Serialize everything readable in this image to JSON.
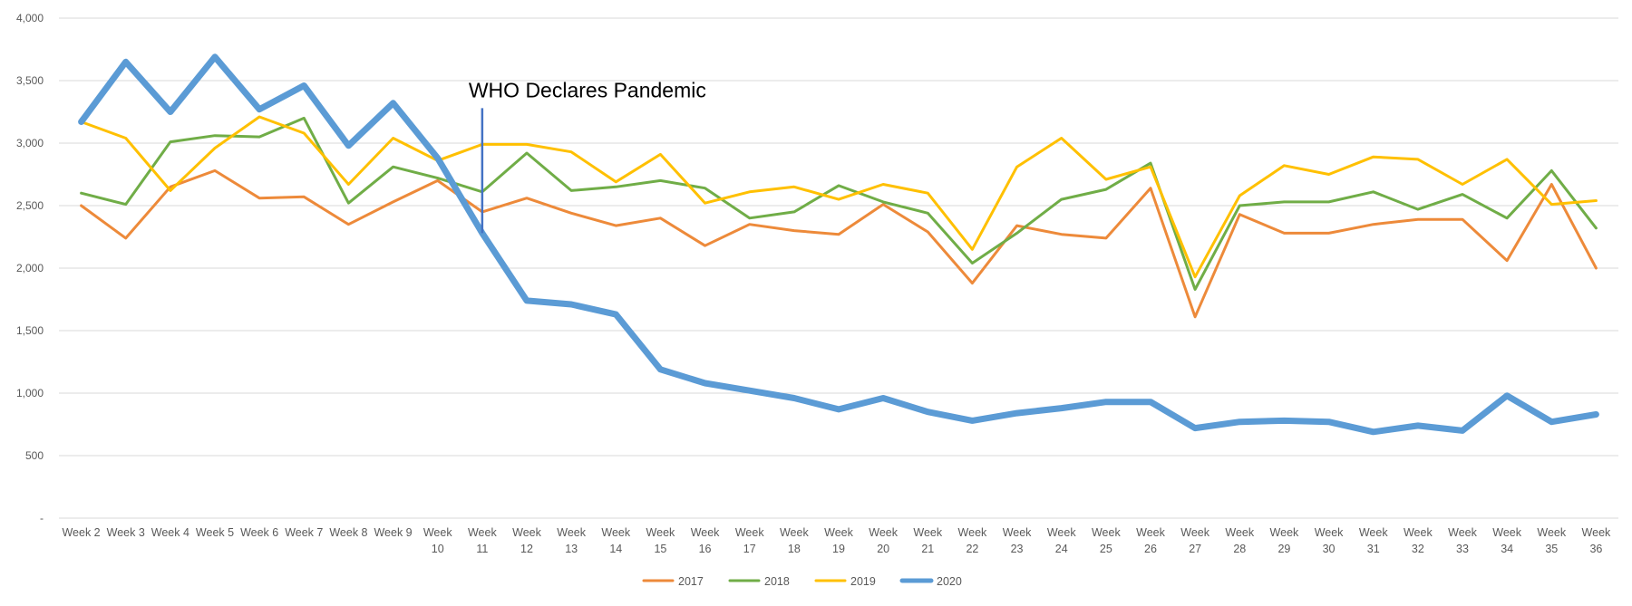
{
  "chart_data": {
    "type": "line",
    "title": "",
    "xlabel": "",
    "ylabel": "",
    "ylim": [
      0,
      4000
    ],
    "yticks": [
      {
        "value": 0,
        "label": "-"
      },
      {
        "value": 500,
        "label": "500"
      },
      {
        "value": 1000,
        "label": "1,000"
      },
      {
        "value": 1500,
        "label": "1,500"
      },
      {
        "value": 2000,
        "label": "2,000"
      },
      {
        "value": 2500,
        "label": "2,500"
      },
      {
        "value": 3000,
        "label": "3,000"
      },
      {
        "value": 3500,
        "label": "3,500"
      },
      {
        "value": 4000,
        "label": "4,000"
      }
    ],
    "grid": true,
    "legend_position": "bottom",
    "categories": [
      "Week 2",
      "Week 3",
      "Week 4",
      "Week 5",
      "Week 6",
      "Week 7",
      "Week 8",
      "Week 9",
      "Week 10",
      "Week 11",
      "Week 12",
      "Week 13",
      "Week 14",
      "Week 15",
      "Week 16",
      "Week 17",
      "Week 18",
      "Week 19",
      "Week 20",
      "Week 21",
      "Week 22",
      "Week 23",
      "Week 24",
      "Week 25",
      "Week 26",
      "Week 27",
      "Week 28",
      "Week 29",
      "Week 30",
      "Week 31",
      "Week 32",
      "Week 33",
      "Week 34",
      "Week 35",
      "Week 36"
    ],
    "series": [
      {
        "name": "2017",
        "color": "#ED8A3A",
        "emphasis": false,
        "values": [
          2500,
          2240,
          2650,
          2780,
          2560,
          2570,
          2350,
          2530,
          2700,
          2450,
          2560,
          2440,
          2340,
          2400,
          2180,
          2350,
          2300,
          2270,
          2510,
          2290,
          1880,
          2340,
          2270,
          2240,
          2640,
          1610,
          2430,
          2280,
          2280,
          2350,
          2390,
          2390,
          2060,
          2670,
          2000
        ]
      },
      {
        "name": "2018",
        "color": "#70AD47",
        "emphasis": false,
        "values": [
          2600,
          2510,
          3010,
          3060,
          3050,
          3200,
          2520,
          2810,
          2720,
          2610,
          2920,
          2620,
          2650,
          2700,
          2640,
          2400,
          2450,
          2660,
          2530,
          2440,
          2040,
          2280,
          2550,
          2630,
          2840,
          1830,
          2500,
          2530,
          2530,
          2610,
          2470,
          2590,
          2400,
          2780,
          2320
        ]
      },
      {
        "name": "2019",
        "color": "#FFC000",
        "emphasis": false,
        "values": [
          3170,
          3040,
          2620,
          2960,
          3210,
          3080,
          2670,
          3040,
          2860,
          2990,
          2990,
          2930,
          2690,
          2910,
          2520,
          2610,
          2650,
          2550,
          2670,
          2600,
          2150,
          2810,
          3040,
          2710,
          2810,
          1930,
          2580,
          2820,
          2750,
          2890,
          2870,
          2670,
          2870,
          2510,
          2540
        ]
      },
      {
        "name": "2020",
        "color": "#5B9BD5",
        "emphasis": true,
        "values": [
          3170,
          3650,
          3250,
          3690,
          3270,
          3460,
          2980,
          3320,
          2880,
          2280,
          1740,
          1710,
          1630,
          1190,
          1080,
          1020,
          960,
          870,
          960,
          850,
          780,
          840,
          880,
          930,
          930,
          720,
          770,
          780,
          770,
          690,
          740,
          700,
          980,
          770,
          830
        ]
      }
    ],
    "annotations": [
      {
        "text": "WHO Declares Pandemic",
        "category": "Week 11",
        "value": 3280,
        "color": "#4472C4"
      }
    ]
  }
}
